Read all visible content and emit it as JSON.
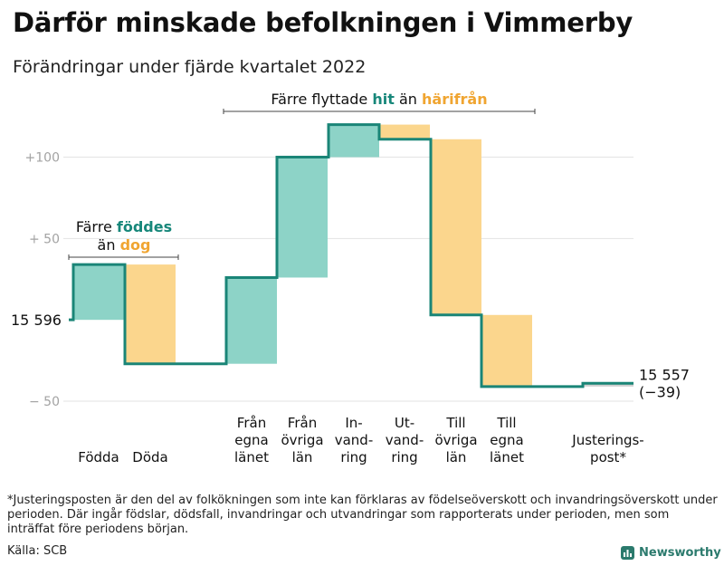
{
  "title": "Därför minskade befolkningen i Vimmerby",
  "subtitle": "Förändringar under fjärde kvartalet 2022",
  "chart_data": {
    "type": "waterfall",
    "start_value": 15596,
    "end_value": 15557,
    "start_label": "15 596",
    "end_label": "15 557",
    "end_change_label": "(−39)",
    "y_axis_relative_to": 15596,
    "ylim": [
      -55,
      122
    ],
    "yticks": [
      {
        "value": 100,
        "label": "+100"
      },
      {
        "value": 50,
        "label": "+ 50"
      },
      {
        "value": -50,
        "label": "− 50"
      }
    ],
    "grid": true,
    "steps": [
      {
        "label_lines": [
          "Födda"
        ],
        "change": 34,
        "kind": "inflow"
      },
      {
        "label_lines": [
          "Döda"
        ],
        "change": -61,
        "kind": "outflow"
      },
      {
        "label_lines": [
          "Från",
          "egna",
          "länet"
        ],
        "change": 53,
        "kind": "inflow"
      },
      {
        "label_lines": [
          "Från",
          "övriga",
          "län"
        ],
        "change": 74,
        "kind": "inflow"
      },
      {
        "label_lines": [
          "In-",
          "vand-",
          "ring"
        ],
        "change": 20,
        "kind": "inflow"
      },
      {
        "label_lines": [
          "Ut-",
          "vand-",
          "ring"
        ],
        "change": -9,
        "kind": "outflow"
      },
      {
        "label_lines": [
          "Till",
          "övriga",
          "län"
        ],
        "change": -108,
        "kind": "outflow"
      },
      {
        "label_lines": [
          "Till",
          "egna",
          "länet"
        ],
        "change": -44,
        "kind": "outflow"
      },
      {
        "label_lines": [
          "Justerings-",
          "post*"
        ],
        "change": 2,
        "kind": "adjustment"
      }
    ],
    "annotations": [
      {
        "parts": [
          "Färre ",
          "föddes"
        ],
        "line2": [
          "än ",
          "dog"
        ]
      },
      {
        "parts": [
          "Färre flyttade ",
          "hit",
          " än ",
          "härifrån"
        ]
      }
    ],
    "colors": {
      "inflow": "#8dd3c7",
      "outflow": "#fbd68d",
      "adjustment": "#cfcfcf",
      "line": "#1a8577",
      "grid": "#e3e3e3"
    }
  },
  "footnote": "*Justeringsposten är den del av folkökningen som inte kan förklaras av födelseöverskott och invandringsöverskott under perioden. Där ingår födslar, dödsfall, invandringar och utvandringar som rapporterats under perioden, men som inträffat före periodens början.",
  "source": "Källa: SCB",
  "brand": "Newsworthy"
}
